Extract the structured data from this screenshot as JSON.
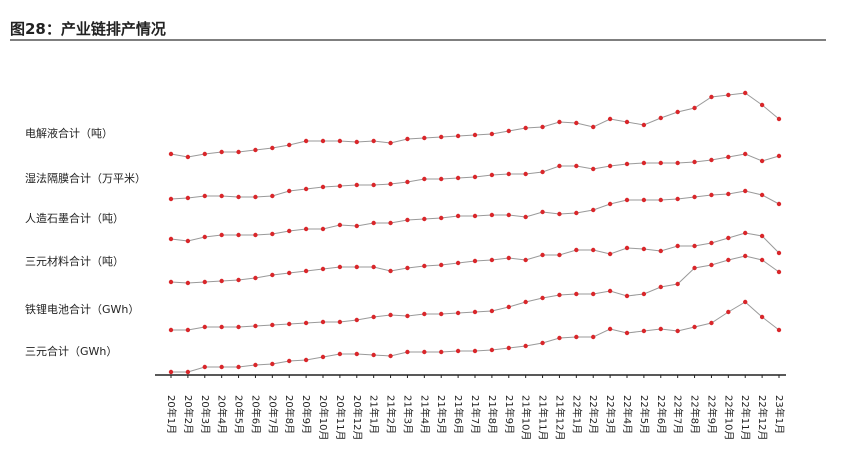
{
  "chart_data": {
    "type": "line",
    "title": "图28：产业链排产情况",
    "categories": [
      "20年1月",
      "20年2月",
      "20年3月",
      "20年4月",
      "20年5月",
      "20年6月",
      "20年7月",
      "20年8月",
      "20年9月",
      "20年10月",
      "20年11月",
      "20年12月",
      "21年1月",
      "21年2月",
      "21年3月",
      "21年4月",
      "21年5月",
      "21年6月",
      "21年7月",
      "21年8月",
      "21年9月",
      "21年10月",
      "21年11月",
      "21年12月",
      "22年1月",
      "22年2月",
      "22年3月",
      "22年4月",
      "22年5月",
      "22年6月",
      "22年7月",
      "22年8月",
      "22年9月",
      "22年10月",
      "22年11月",
      "22年12月",
      "23年1月"
    ],
    "ylim": [
      0,
      300
    ],
    "line_color": "#9a9a9a",
    "series": [
      {
        "name": "电解液合计（吨）",
        "color": "#d9262a",
        "values": [
          221,
          218,
          221,
          223,
          223,
          225,
          227,
          230,
          234,
          234,
          234,
          233,
          234,
          232,
          236,
          237,
          238,
          239,
          240,
          241,
          244,
          247,
          248,
          253,
          252,
          248,
          256,
          253,
          250,
          257,
          263,
          267,
          278,
          280,
          282,
          270,
          256
        ]
      },
      {
        "name": "湿法隔膜合计（万平米）",
        "color": "#d9262a",
        "values": [
          176,
          177,
          179,
          179,
          178,
          178,
          179,
          184,
          186,
          188,
          189,
          190,
          190,
          191,
          193,
          196,
          196,
          197,
          198,
          200,
          201,
          201,
          203,
          209,
          209,
          206,
          209,
          211,
          212,
          212,
          212,
          213,
          215,
          218,
          221,
          214,
          219
        ]
      },
      {
        "name": "人造石墨合计（吨）",
        "color": "#d9262a",
        "values": [
          136,
          134,
          138,
          140,
          140,
          140,
          141,
          144,
          146,
          146,
          150,
          149,
          152,
          152,
          155,
          156,
          157,
          159,
          159,
          160,
          160,
          158,
          163,
          161,
          162,
          165,
          171,
          175,
          175,
          175,
          176,
          178,
          180,
          181,
          184,
          180,
          171
        ]
      },
      {
        "name": "三元材料合计（吨）",
        "color": "#d9262a",
        "values": [
          93,
          92,
          93,
          94,
          95,
          97,
          100,
          102,
          104,
          106,
          108,
          108,
          108,
          104,
          107,
          109,
          110,
          112,
          114,
          115,
          117,
          115,
          120,
          120,
          125,
          125,
          121,
          127,
          126,
          124,
          129,
          129,
          132,
          137,
          142,
          139,
          122
        ]
      },
      {
        "name": "铁锂电池合计（GWh）",
        "color": "#d9262a",
        "values": [
          45,
          45,
          48,
          48,
          48,
          49,
          50,
          51,
          52,
          53,
          53,
          55,
          58,
          60,
          59,
          61,
          61,
          62,
          63,
          64,
          68,
          73,
          77,
          80,
          81,
          81,
          84,
          79,
          81,
          88,
          91,
          107,
          110,
          115,
          119,
          115,
          103
        ]
      },
      {
        "name": "三元合计（GWh）",
        "color": "#d9262a",
        "values": [
          3,
          3,
          8,
          8,
          8,
          10,
          11,
          14,
          15,
          18,
          21,
          21,
          20,
          19,
          23,
          23,
          23,
          24,
          24,
          25,
          27,
          29,
          32,
          37,
          38,
          38,
          46,
          42,
          44,
          46,
          44,
          48,
          52,
          63,
          73,
          58,
          45
        ]
      }
    ]
  }
}
